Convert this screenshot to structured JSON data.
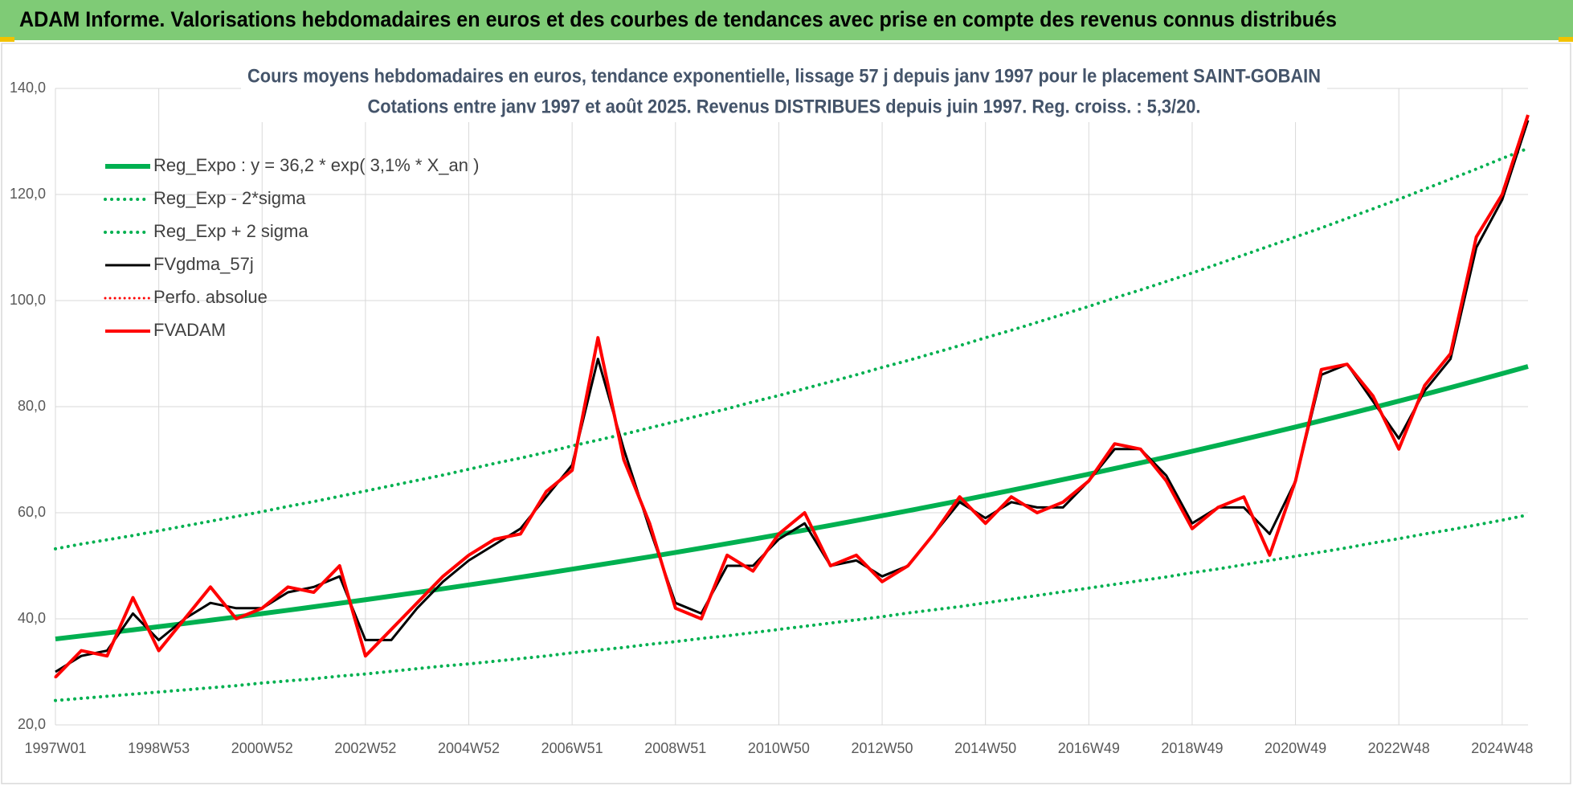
{
  "header": {
    "title": "ADAM Informe. Valorisations hebdomadaires en euros et des courbes de tendances avec prise en compte des revenus connus distribués"
  },
  "chart_data": {
    "type": "line",
    "title": "Cours moyens hebdomadaires en euros, tendance exponentielle, lissage 57 j depuis janv 1997 pour le placement SAINT-GOBAIN",
    "subtitle": "Cotations entre janv 1997 et août 2025. Revenus DISTRIBUES depuis juin 1997. Reg. croiss. : 5,3/20.",
    "categories": [
      "1997W01",
      null,
      null,
      null,
      "1998W53",
      null,
      null,
      null,
      "2000W52",
      null,
      null,
      null,
      "2002W52",
      null,
      null,
      null,
      "2004W52",
      null,
      null,
      null,
      "2006W51",
      null,
      null,
      null,
      "2008W51",
      null,
      null,
      null,
      "2010W50",
      null,
      null,
      null,
      "2012W50",
      null,
      null,
      null,
      "2014W50",
      null,
      null,
      null,
      "2016W49",
      null,
      null,
      null,
      "2018W49",
      null,
      null,
      null,
      "2020W49",
      null,
      null,
      null,
      "2022W48",
      null,
      null,
      null,
      "2024W48",
      null
    ],
    "ylim": [
      20,
      140
    ],
    "yticks": [
      {
        "value": 20,
        "label": "20,0"
      },
      {
        "value": 40,
        "label": "40,0"
      },
      {
        "value": 60,
        "label": "60,0"
      },
      {
        "value": 80,
        "label": "80,0"
      },
      {
        "value": 100,
        "label": "100,0"
      },
      {
        "value": 120,
        "label": "120,0"
      },
      {
        "value": 140,
        "label": "140,0"
      }
    ],
    "grid": true,
    "legend": "upper left",
    "series": [
      {
        "name": "Reg_Expo : y = 36,2 * exp( 3,1% *  X_an )",
        "color": "#00b050",
        "style": "solid",
        "width": 6,
        "values": [
          36.2,
          36.77,
          37.34,
          37.92,
          38.52,
          39.12,
          39.73,
          40.35,
          40.98,
          41.62,
          42.27,
          42.93,
          43.6,
          44.28,
          44.97,
          45.67,
          46.39,
          47.11,
          47.85,
          48.6,
          49.36,
          50.13,
          50.91,
          51.7,
          52.51,
          53.33,
          54.17,
          55.01,
          55.87,
          56.74,
          57.63,
          58.53,
          59.44,
          60.37,
          61.31,
          62.27,
          63.25,
          64.23,
          65.24,
          66.26,
          67.29,
          68.34,
          69.41,
          70.49,
          71.59,
          72.71,
          73.85,
          75.0,
          76.17,
          77.36,
          78.57,
          79.8,
          81.05,
          82.31,
          83.6,
          84.9,
          86.23,
          87.58
        ]
      },
      {
        "name": "Reg_Exp - 2*sigma",
        "color": "#00b050",
        "style": "dotted",
        "width": 4,
        "values": [
          24.6,
          25.0,
          25.4,
          25.8,
          26.2,
          26.6,
          27.0,
          27.4,
          27.9,
          28.3,
          28.7,
          29.2,
          29.6,
          30.1,
          30.6,
          31.1,
          31.5,
          32.0,
          32.5,
          33.0,
          33.6,
          34.1,
          34.6,
          35.2,
          35.7,
          36.3,
          36.8,
          37.4,
          38.0,
          38.6,
          39.2,
          39.8,
          40.4,
          41.1,
          41.7,
          42.3,
          43.0,
          43.7,
          44.4,
          45.1,
          45.8,
          46.5,
          47.2,
          47.9,
          48.7,
          49.4,
          50.2,
          51.0,
          51.8,
          52.6,
          53.4,
          54.3,
          55.1,
          56.0,
          56.8,
          57.7,
          58.6,
          59.6
        ]
      },
      {
        "name": "Reg_Exp + 2 sigma",
        "color": "#00b050",
        "style": "dotted",
        "width": 4,
        "values": [
          53.2,
          54.1,
          54.9,
          55.7,
          56.6,
          57.5,
          58.4,
          59.3,
          60.2,
          61.2,
          62.1,
          63.1,
          64.1,
          65.1,
          66.1,
          67.1,
          68.2,
          69.3,
          70.3,
          71.4,
          72.6,
          73.7,
          74.8,
          76.0,
          77.2,
          78.4,
          79.6,
          80.9,
          82.1,
          83.4,
          84.7,
          86.0,
          87.4,
          88.7,
          90.1,
          91.5,
          93.0,
          94.4,
          95.9,
          97.4,
          98.9,
          100.5,
          102.0,
          103.6,
          105.2,
          106.9,
          108.6,
          110.3,
          112.0,
          113.7,
          115.5,
          117.3,
          119.1,
          121.0,
          122.9,
          124.8,
          126.8,
          128.7
        ]
      },
      {
        "name": "FVgdma_57j",
        "color": "#000000",
        "style": "solid",
        "width": 3,
        "values": [
          30,
          33,
          34,
          41,
          36,
          40,
          43,
          42,
          42,
          45,
          46,
          48,
          36,
          36,
          42,
          47,
          51,
          54,
          57,
          63,
          69,
          89,
          72,
          57,
          43,
          41,
          50,
          50,
          55,
          58,
          50,
          51,
          48,
          50,
          56,
          62,
          59,
          62,
          61,
          61,
          66,
          72,
          72,
          67,
          58,
          61,
          61,
          56,
          66,
          86,
          88,
          81,
          74,
          83,
          89,
          110,
          119,
          134
        ]
      },
      {
        "name": "Perfo. absolue",
        "color": "#ff0000",
        "style": "dotted",
        "width": 3,
        "values": [
          29,
          34,
          33,
          44,
          34,
          40,
          46,
          40,
          42,
          46,
          45,
          50,
          33,
          38,
          43,
          48,
          52,
          55,
          56,
          64,
          68,
          93,
          70,
          58,
          42,
          40,
          52,
          49,
          56,
          60,
          50,
          52,
          47,
          50,
          56,
          63,
          58,
          63,
          60,
          62,
          66,
          73,
          72,
          66,
          57,
          61,
          63,
          52,
          66,
          87,
          88,
          82,
          72,
          84,
          90,
          112,
          120,
          135
        ]
      },
      {
        "name": "FVADAM",
        "color": "#ff0000",
        "style": "solid",
        "width": 4,
        "values": [
          29,
          34,
          33,
          44,
          34,
          40,
          46,
          40,
          42,
          46,
          45,
          50,
          33,
          38,
          43,
          48,
          52,
          55,
          56,
          64,
          68,
          93,
          70,
          58,
          42,
          40,
          52,
          49,
          56,
          60,
          50,
          52,
          47,
          50,
          56,
          63,
          58,
          63,
          60,
          62,
          66,
          73,
          72,
          66,
          57,
          61,
          63,
          52,
          66,
          87,
          88,
          82,
          72,
          84,
          90,
          112,
          120,
          135
        ]
      }
    ]
  }
}
